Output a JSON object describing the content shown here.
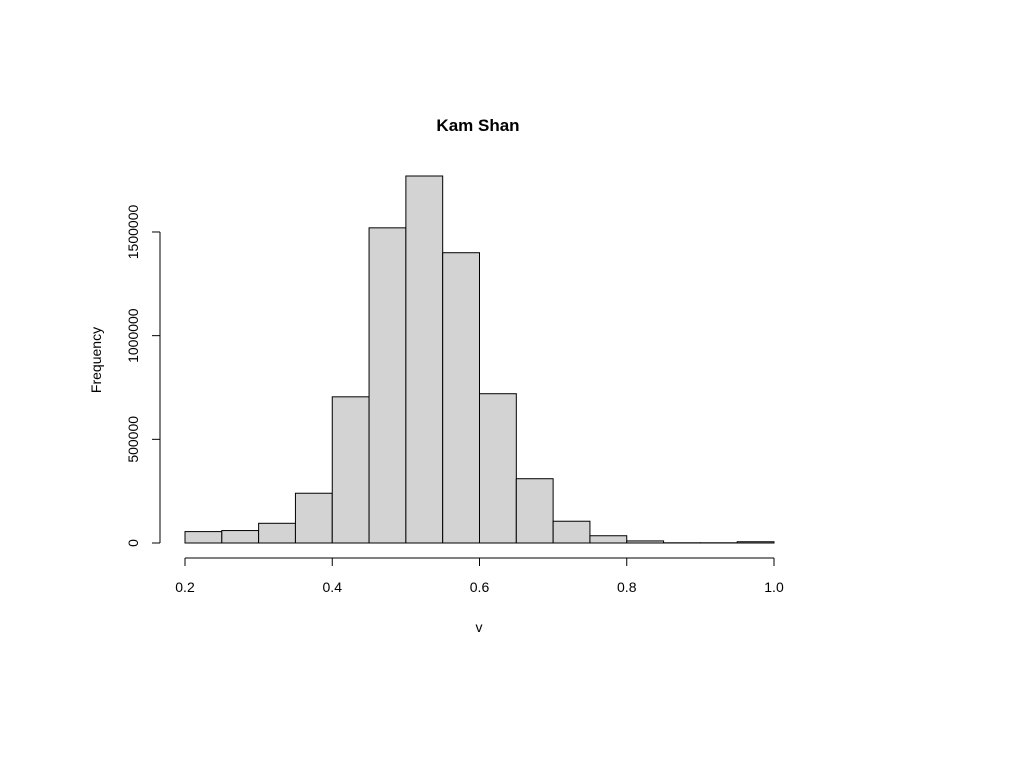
{
  "chart_data": {
    "type": "bar",
    "title": "Kam Shan",
    "xlabel": "v",
    "ylabel": "Frequency",
    "bins": [
      {
        "x0": 0.2,
        "x1": 0.25,
        "count": 55000
      },
      {
        "x0": 0.25,
        "x1": 0.3,
        "count": 60000
      },
      {
        "x0": 0.3,
        "x1": 0.35,
        "count": 95000
      },
      {
        "x0": 0.35,
        "x1": 0.4,
        "count": 240000
      },
      {
        "x0": 0.4,
        "x1": 0.45,
        "count": 705000
      },
      {
        "x0": 0.45,
        "x1": 0.5,
        "count": 1520000
      },
      {
        "x0": 0.5,
        "x1": 0.55,
        "count": 1770000
      },
      {
        "x0": 0.55,
        "x1": 0.6,
        "count": 1400000
      },
      {
        "x0": 0.6,
        "x1": 0.65,
        "count": 720000
      },
      {
        "x0": 0.65,
        "x1": 0.7,
        "count": 310000
      },
      {
        "x0": 0.7,
        "x1": 0.75,
        "count": 105000
      },
      {
        "x0": 0.75,
        "x1": 0.8,
        "count": 35000
      },
      {
        "x0": 0.8,
        "x1": 0.85,
        "count": 10000
      },
      {
        "x0": 0.85,
        "x1": 0.9,
        "count": 1000
      },
      {
        "x0": 0.9,
        "x1": 0.95,
        "count": 1000
      },
      {
        "x0": 0.95,
        "x1": 1.0,
        "count": 6000
      }
    ],
    "xlim": [
      0.2,
      1.0
    ],
    "ylim": [
      0,
      1770000
    ],
    "x_ticks": [
      0.2,
      0.4,
      0.6,
      0.8,
      1.0
    ],
    "x_tick_labels": [
      "0.2",
      "0.4",
      "0.6",
      "0.8",
      "1.0"
    ],
    "y_ticks": [
      0,
      500000,
      1000000,
      1500000
    ],
    "y_tick_labels": [
      "0",
      "500000",
      "1000000",
      "1500000"
    ],
    "bar_color": "#d3d3d3",
    "grid": false,
    "legend": "none"
  }
}
